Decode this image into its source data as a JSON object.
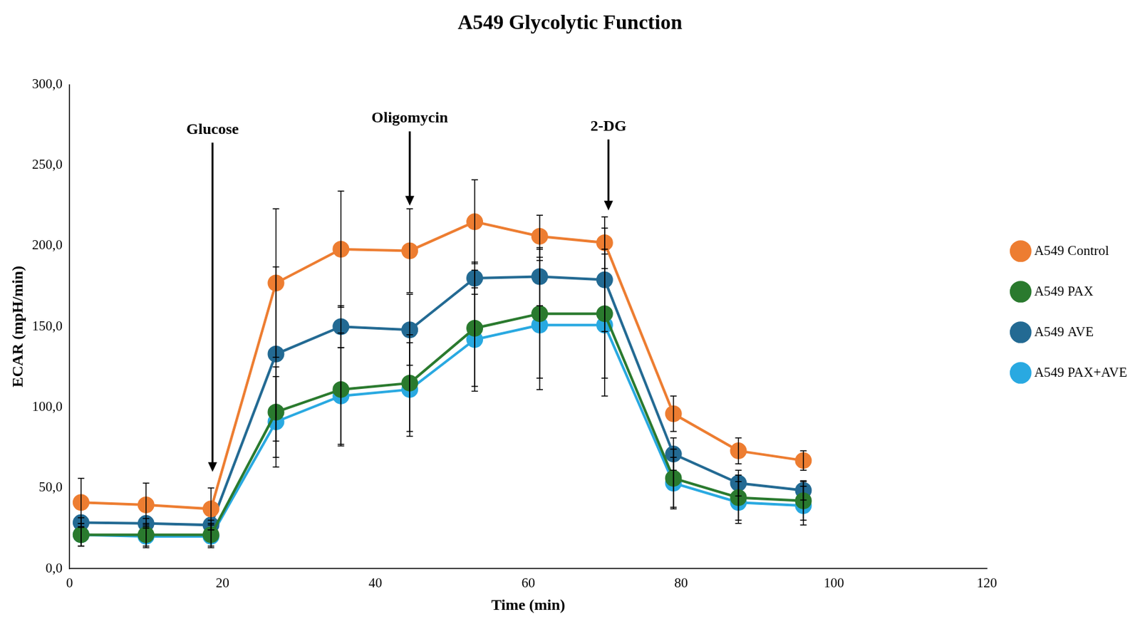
{
  "chart_data": {
    "type": "line",
    "title": "A549 Glycolytic Function",
    "x_label": "Time (min)",
    "y_label": "ECAR (mpH/min)",
    "x": [
      1.5,
      10,
      18.5,
      27,
      35.5,
      44.5,
      53,
      61.5,
      70,
      79,
      87.5,
      96
    ],
    "xlim": [
      0,
      120
    ],
    "xticks": [
      0,
      20,
      40,
      60,
      80,
      100,
      120
    ],
    "ylim": [
      0,
      300
    ],
    "yticks": [
      {
        "value": 0,
        "label": "0,0"
      },
      {
        "value": 50,
        "label": "50,0"
      },
      {
        "value": 100,
        "label": "100,0"
      },
      {
        "value": 150,
        "label": "150,0"
      },
      {
        "value": 200,
        "label": "200,0"
      },
      {
        "value": 250,
        "label": "250,0"
      },
      {
        "value": 300,
        "label": "300,0"
      }
    ],
    "grid": false,
    "legend": "right",
    "marker": "circle",
    "line_style": "solid",
    "series": [
      {
        "name": "A549 Control",
        "color": "#ed7d31",
        "values": [
          41,
          39.5,
          37,
          177,
          198,
          197,
          215,
          206,
          202,
          96,
          73,
          67
        ],
        "errors": [
          15,
          13.5,
          13,
          46,
          36,
          26,
          26,
          13,
          16,
          11,
          8,
          6
        ]
      },
      {
        "name": "A549 PAX",
        "color": "#2a7a2e",
        "values": [
          21,
          21,
          21,
          97,
          111,
          115,
          149,
          158,
          158,
          56,
          44,
          42
        ],
        "errors": [
          7,
          7,
          7,
          28,
          35,
          30,
          36,
          40,
          40,
          18,
          14,
          12
        ]
      },
      {
        "name": "A549 AVE",
        "color": "#236a93",
        "values": [
          28.5,
          28,
          27,
          133,
          150,
          148,
          180,
          181,
          179,
          71,
          53,
          48.5
        ],
        "errors": [
          3,
          3,
          3,
          54,
          13,
          22,
          10,
          18,
          32,
          10,
          8,
          6
        ]
      },
      {
        "name": "A549 PAX+AVE",
        "color": "#29a9e1",
        "values": [
          21,
          20,
          20,
          91,
          107,
          111,
          142,
          151,
          151,
          53,
          41,
          39
        ],
        "errors": [
          7,
          7,
          7,
          28,
          30,
          29,
          32,
          40,
          44,
          16,
          13,
          12
        ]
      }
    ],
    "annotations": [
      {
        "text": "Glucose",
        "x": 18.7,
        "y_start": 264,
        "y_end": 60
      },
      {
        "text": "Oligomycin",
        "x": 44.5,
        "y_start": 271,
        "y_end": 225
      },
      {
        "text": "2-DG",
        "x": 70.5,
        "y_start": 266,
        "y_end": 222
      }
    ]
  }
}
